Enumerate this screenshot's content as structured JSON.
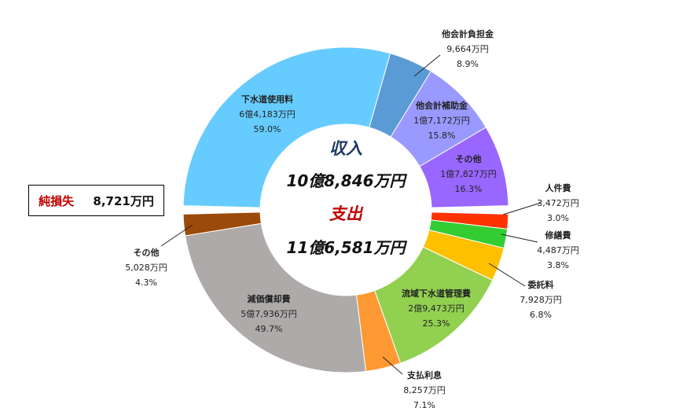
{
  "colors": {
    "income_label": "#1f3864",
    "expense_label": "#c00000",
    "center_income": "#1f3864",
    "center_expense": "#c00000"
  },
  "center": {
    "income_title": "収入",
    "income_total": "10億8,846万円",
    "expense_title": "支出",
    "expense_total": "11億6,581万円"
  },
  "net_loss": {
    "label": "純損失",
    "value": "8,721万円"
  },
  "chart_data": [
    {
      "type": "pie",
      "title": "収入",
      "slices": [
        {
          "name": "下水道使用料",
          "amount": "6億4,183万円",
          "percent": "59.0%",
          "value": 64183,
          "color": "#66ccff"
        },
        {
          "name": "他会計負担金",
          "amount": "9,664万円",
          "percent": "8.9%",
          "value": 9664,
          "color": "#5b9bd5"
        },
        {
          "name": "他会計補助金",
          "amount": "1億7,172万円",
          "percent": "15.8%",
          "value": 17172,
          "color": "#9999ff"
        },
        {
          "name": "その他",
          "amount": "1億7,827万円",
          "percent": "16.3%",
          "value": 17827,
          "color": "#9966ff"
        }
      ]
    },
    {
      "type": "pie",
      "title": "支出",
      "slices": [
        {
          "name": "人件費",
          "amount": "3,472万円",
          "percent": "3.0%",
          "value": 3472,
          "color": "#ff3300"
        },
        {
          "name": "修繕費",
          "amount": "4,487万円",
          "percent": "3.8%",
          "value": 4487,
          "color": "#33cc33"
        },
        {
          "name": "委託料",
          "amount": "7,928万円",
          "percent": "6.8%",
          "value": 7928,
          "color": "#ffc000"
        },
        {
          "name": "流域下水道管理費",
          "amount": "2億9,473万円",
          "percent": "25.3%",
          "value": 29473,
          "color": "#92d050"
        },
        {
          "name": "支払利息",
          "amount": "8,257万円",
          "percent": "7.1%",
          "value": 8257,
          "color": "#ff9933"
        },
        {
          "name": "減価償却費",
          "amount": "5億7,936万円",
          "percent": "49.7%",
          "value": 57936,
          "color": "#aeaaaa"
        },
        {
          "name": "その他",
          "amount": "5,028万円",
          "percent": "4.3%",
          "value": 5028,
          "color": "#9c4a0a"
        }
      ]
    }
  ]
}
